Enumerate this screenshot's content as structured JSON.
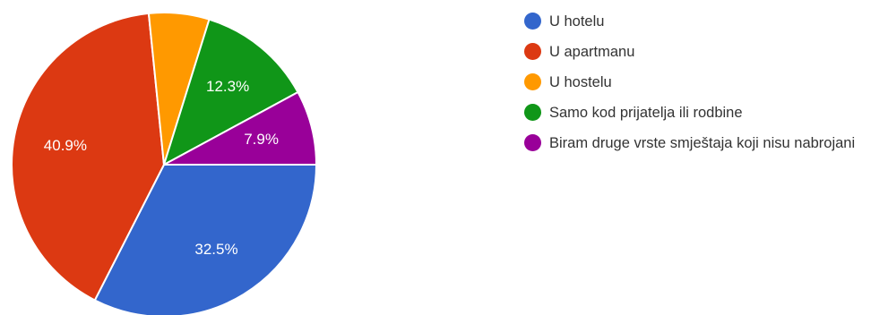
{
  "chart_data": {
    "type": "pie",
    "title": "",
    "legend_position": "right",
    "categories": [
      "U hotelu",
      "U apartmanu",
      "U hostelu",
      "Samo kod prijatelja ili rodbine",
      "Biram druge vrste smještaja koji nisu nabrojani"
    ],
    "values": [
      32.5,
      40.9,
      6.4,
      12.3,
      7.9
    ],
    "labels": [
      "32.5%",
      "40.9%",
      "",
      "12.3%",
      "7.9%"
    ],
    "colors": [
      "#3366cc",
      "#dc3912",
      "#ff9900",
      "#109618",
      "#990099"
    ]
  }
}
